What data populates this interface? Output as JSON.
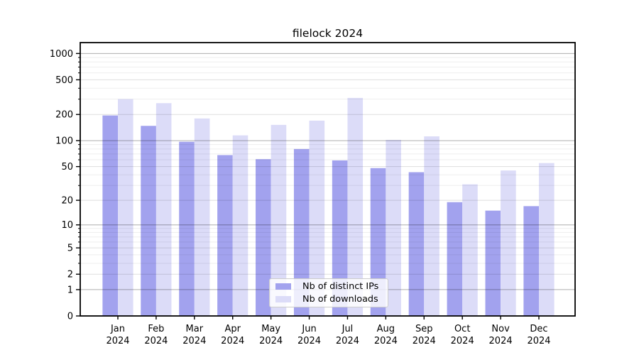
{
  "title": "filelock 2024",
  "chart_data": {
    "type": "bar",
    "title": "filelock 2024",
    "categories": [
      "Jan",
      "Feb",
      "Mar",
      "Apr",
      "May",
      "Jun",
      "Jul",
      "Aug",
      "Sep",
      "Oct",
      "Nov",
      "Dec"
    ],
    "year_label": "2024",
    "series": [
      {
        "name": "Nb of distinct IPs",
        "color": "#a2a2ee",
        "values": [
          195,
          148,
          97,
          68,
          61,
          80,
          59,
          48,
          43,
          19,
          15,
          17
        ]
      },
      {
        "name": "Nb of downloads",
        "color": "#dcdcf8",
        "values": [
          300,
          270,
          180,
          115,
          152,
          170,
          310,
          102,
          112,
          31,
          45,
          55
        ]
      }
    ],
    "yscale": "log1p",
    "yticks": [
      0,
      1,
      2,
      5,
      10,
      20,
      50,
      100,
      200,
      500,
      1000
    ],
    "major_yticks": [
      1,
      10,
      100,
      1000
    ],
    "ylim": [
      0,
      1330
    ],
    "grid": true,
    "legend_position": "lower center",
    "colors": {
      "axis": "#000000",
      "major_grid": "rgba(0,0,0,0.32)",
      "minor_grid_labeled": "rgba(0,0,0,0.13)",
      "minor_grid_faint": "rgba(0,0,0,0.065)"
    }
  }
}
